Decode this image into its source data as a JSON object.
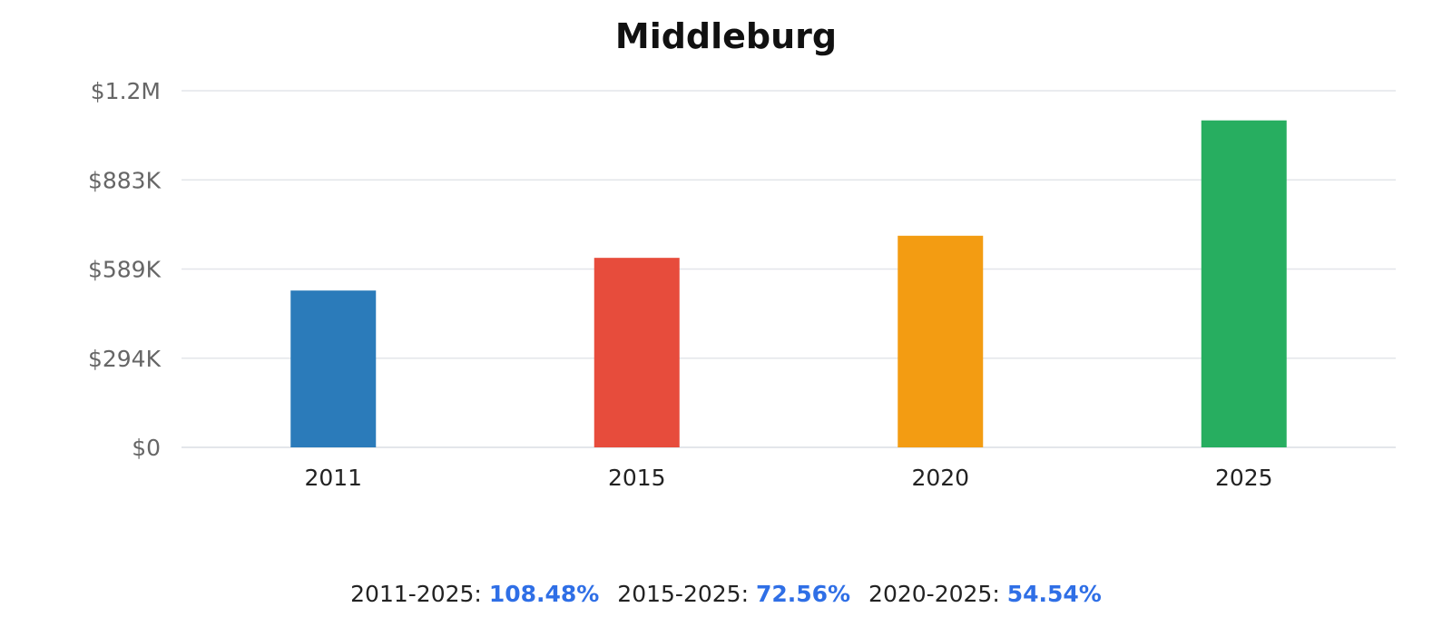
{
  "chart_data": {
    "type": "bar",
    "title": "Middleburg",
    "categories": [
      "2011",
      "2015",
      "2020",
      "2025"
    ],
    "values": [
      518000,
      626000,
      699000,
      1080000
    ],
    "colors": [
      "#2b7bba",
      "#e74c3c",
      "#f39c12",
      "#27ae60"
    ],
    "ylim": [
      0,
      1178000
    ],
    "yticks": [
      {
        "value": 0,
        "label": "$0"
      },
      {
        "value": 294500,
        "label": "$294K"
      },
      {
        "value": 589000,
        "label": "$589K"
      },
      {
        "value": 883500,
        "label": "$883K"
      },
      {
        "value": 1178000,
        "label": "$1.2M"
      }
    ],
    "grid": true,
    "legend": "none"
  },
  "growth": [
    {
      "label": "2011-2025:",
      "value": "108.48%"
    },
    {
      "label": "2015-2025:",
      "value": "72.56%"
    },
    {
      "label": "2020-2025:",
      "value": "54.54%"
    }
  ]
}
